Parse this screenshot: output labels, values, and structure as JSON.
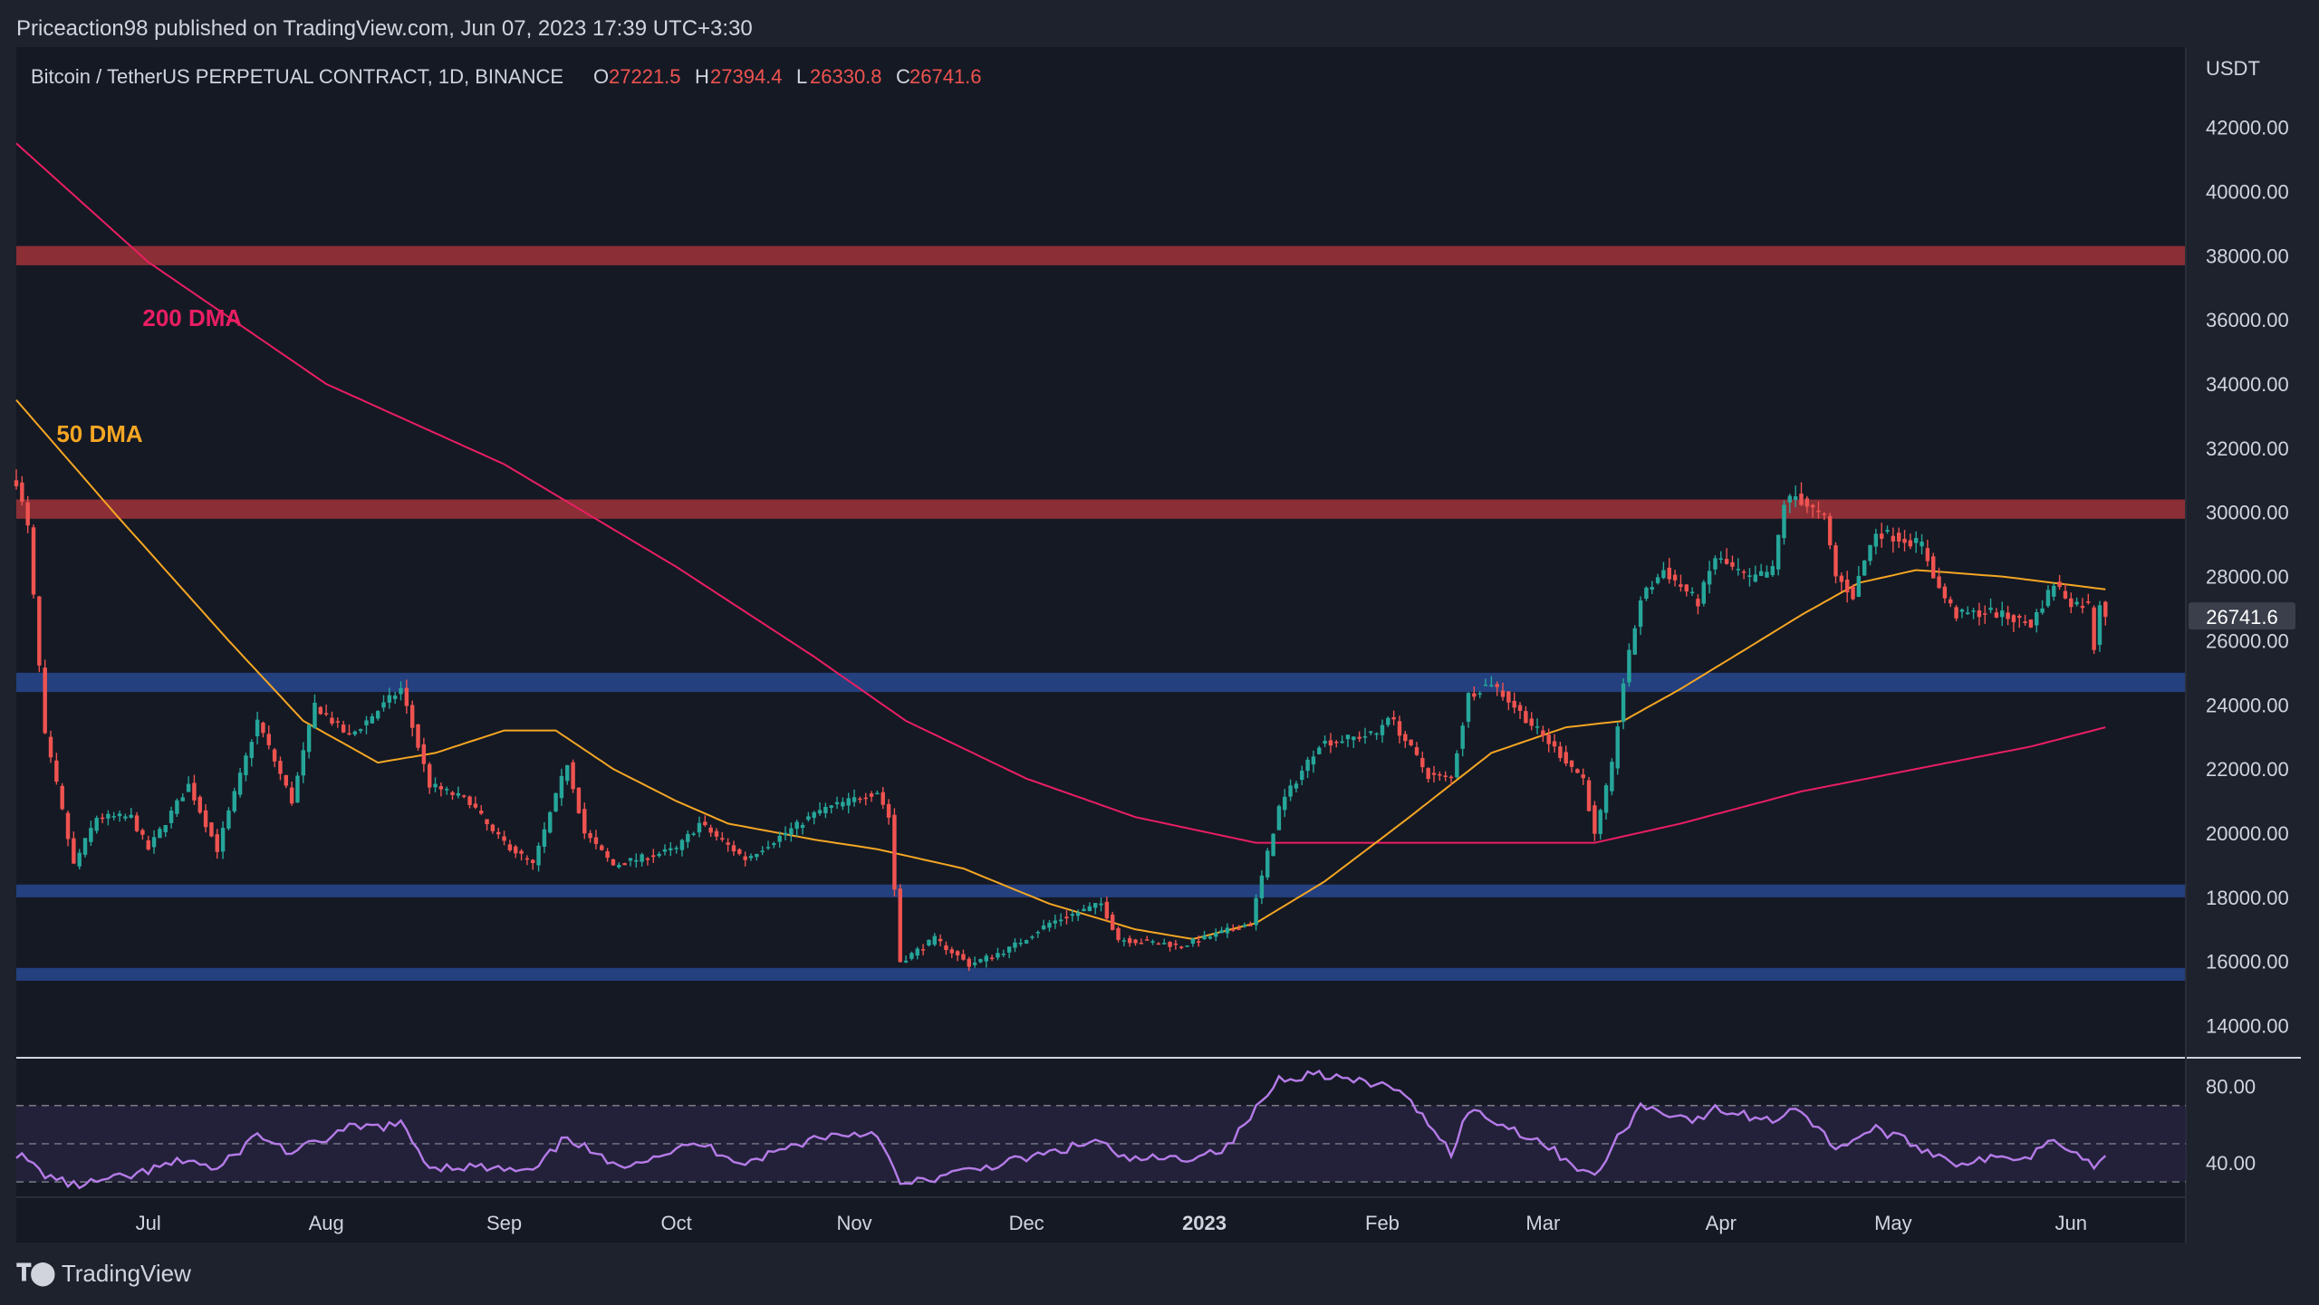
{
  "publisher_line": "Priceaction98 published on TradingView.com, Jun 07, 2023 17:39 UTC+3:30",
  "brand": {
    "name": "TradingView",
    "logo_icon": "tradingview-logo-icon"
  },
  "colors": {
    "background": "#1e222d",
    "chart_background": "#151924",
    "candle_up": "#26a69a",
    "candle_down": "#ef5350",
    "ma50": "#f5a623",
    "ma200": "#e91e63",
    "resistance_zone": "#8b2e35",
    "support_zone": "#24407f",
    "rsi_line": "#b57be8",
    "rsi_band_fill": "#2a2545"
  },
  "chart_data": {
    "type": "candlestick",
    "symbol_line": "Bitcoin / TetherUS PERPETUAL CONTRACT, 1D, BINANCE",
    "ohlc_readout": [
      {
        "label": "O",
        "value": "27221.5"
      },
      {
        "label": "H",
        "value": "27394.4"
      },
      {
        "label": "L",
        "value": "26330.8"
      },
      {
        "label": "C",
        "value": "26741.6"
      }
    ],
    "currency_label": "USDT",
    "last_price": 26741.6,
    "last_price_label": "26741.6",
    "x_range": [
      "2022-06-08",
      "2023-06-21"
    ],
    "y_range": [
      13000,
      44500
    ],
    "y_ticks": [
      "14000.00",
      "16000.00",
      "18000.00",
      "20000.00",
      "22000.00",
      "24000.00",
      "26000.00",
      "28000.00",
      "30000.00",
      "32000.00",
      "34000.00",
      "36000.00",
      "38000.00",
      "40000.00",
      "42000.00"
    ],
    "x_ticks": [
      {
        "label": "Jul",
        "date": "2022-07-01",
        "bold": false
      },
      {
        "label": "Aug",
        "date": "2022-08-01",
        "bold": false
      },
      {
        "label": "Sep",
        "date": "2022-09-01",
        "bold": false
      },
      {
        "label": "Oct",
        "date": "2022-10-01",
        "bold": false
      },
      {
        "label": "Nov",
        "date": "2022-11-01",
        "bold": false
      },
      {
        "label": "Dec",
        "date": "2022-12-01",
        "bold": false
      },
      {
        "label": "2023",
        "date": "2023-01-01",
        "bold": true
      },
      {
        "label": "Feb",
        "date": "2023-02-01",
        "bold": false
      },
      {
        "label": "Mar",
        "date": "2023-03-01",
        "bold": false
      },
      {
        "label": "Apr",
        "date": "2023-04-01",
        "bold": false
      },
      {
        "label": "May",
        "date": "2023-05-01",
        "bold": false
      },
      {
        "label": "Jun",
        "date": "2023-06-01",
        "bold": false
      }
    ],
    "zones": [
      {
        "kind": "resistance",
        "low": 37700,
        "high": 38300
      },
      {
        "kind": "resistance",
        "low": 29800,
        "high": 30400
      },
      {
        "kind": "support",
        "low": 24400,
        "high": 25000
      },
      {
        "kind": "support",
        "low": 18000,
        "high": 18400
      },
      {
        "kind": "support",
        "low": 15400,
        "high": 15800
      }
    ],
    "price_keypoints": [
      [
        "2022-06-08",
        31000
      ],
      [
        "2022-06-10",
        29500
      ],
      [
        "2022-06-13",
        23000
      ],
      [
        "2022-06-15",
        21500
      ],
      [
        "2022-06-18",
        19000
      ],
      [
        "2022-06-22",
        20500
      ],
      [
        "2022-06-28",
        20500
      ],
      [
        "2022-07-01",
        19500
      ],
      [
        "2022-07-08",
        21500
      ],
      [
        "2022-07-13",
        19500
      ],
      [
        "2022-07-20",
        23500
      ],
      [
        "2022-07-26",
        21000
      ],
      [
        "2022-07-30",
        24000
      ],
      [
        "2022-08-05",
        23000
      ],
      [
        "2022-08-14",
        24500
      ],
      [
        "2022-08-19",
        21500
      ],
      [
        "2022-08-26",
        21000
      ],
      [
        "2022-08-30",
        20000
      ],
      [
        "2022-09-06",
        19000
      ],
      [
        "2022-09-12",
        22200
      ],
      [
        "2022-09-15",
        20000
      ],
      [
        "2022-09-20",
        19000
      ],
      [
        "2022-10-01",
        19500
      ],
      [
        "2022-10-05",
        20300
      ],
      [
        "2022-10-13",
        19200
      ],
      [
        "2022-10-26",
        20700
      ],
      [
        "2022-11-05",
        21300
      ],
      [
        "2022-11-07",
        20500
      ],
      [
        "2022-11-09",
        16000
      ],
      [
        "2022-11-15",
        16700
      ],
      [
        "2022-11-21",
        15900
      ],
      [
        "2022-11-28",
        16400
      ],
      [
        "2022-12-05",
        17200
      ],
      [
        "2022-12-14",
        17800
      ],
      [
        "2022-12-17",
        16700
      ],
      [
        "2022-12-28",
        16500
      ],
      [
        "2023-01-04",
        16900
      ],
      [
        "2023-01-09",
        17200
      ],
      [
        "2023-01-14",
        20800
      ],
      [
        "2023-01-21",
        22800
      ],
      [
        "2023-01-31",
        23100
      ],
      [
        "2023-02-02",
        23700
      ],
      [
        "2023-02-09",
        21800
      ],
      [
        "2023-02-13",
        21700
      ],
      [
        "2023-02-16",
        24300
      ],
      [
        "2023-02-20",
        24700
      ],
      [
        "2023-02-28",
        23200
      ],
      [
        "2023-03-08",
        21700
      ],
      [
        "2023-03-10",
        19900
      ],
      [
        "2023-03-13",
        22100
      ],
      [
        "2023-03-15",
        24700
      ],
      [
        "2023-03-18",
        27300
      ],
      [
        "2023-03-22",
        28200
      ],
      [
        "2023-03-28",
        27200
      ],
      [
        "2023-03-31",
        28600
      ],
      [
        "2023-04-06",
        27900
      ],
      [
        "2023-04-10",
        28200
      ],
      [
        "2023-04-12",
        30300
      ],
      [
        "2023-04-14",
        30500
      ],
      [
        "2023-04-19",
        29800
      ],
      [
        "2023-04-21",
        28000
      ],
      [
        "2023-04-24",
        27400
      ],
      [
        "2023-04-26",
        28500
      ],
      [
        "2023-04-28",
        29400
      ],
      [
        "2023-05-06",
        29000
      ],
      [
        "2023-05-09",
        27600
      ],
      [
        "2023-05-12",
        26800
      ],
      [
        "2023-05-18",
        26900
      ],
      [
        "2023-05-25",
        26500
      ],
      [
        "2023-05-29",
        27800
      ],
      [
        "2023-06-01",
        27200
      ],
      [
        "2023-06-04",
        27100
      ],
      [
        "2023-06-05",
        25800
      ],
      [
        "2023-06-06",
        27200
      ],
      [
        "2023-06-07",
        26741.6
      ]
    ],
    "ma50_keypoints": [
      [
        "2022-06-08",
        33500
      ],
      [
        "2022-06-25",
        30000
      ],
      [
        "2022-07-15",
        26000
      ],
      [
        "2022-07-28",
        23500
      ],
      [
        "2022-08-10",
        22200
      ],
      [
        "2022-08-20",
        22500
      ],
      [
        "2022-09-01",
        23200
      ],
      [
        "2022-09-10",
        23200
      ],
      [
        "2022-09-20",
        22000
      ],
      [
        "2022-10-01",
        21000
      ],
      [
        "2022-10-10",
        20300
      ],
      [
        "2022-10-25",
        19800
      ],
      [
        "2022-11-05",
        19500
      ],
      [
        "2022-11-20",
        18900
      ],
      [
        "2022-12-05",
        17800
      ],
      [
        "2022-12-20",
        17000
      ],
      [
        "2022-12-30",
        16700
      ],
      [
        "2023-01-10",
        17200
      ],
      [
        "2023-01-22",
        18500
      ],
      [
        "2023-02-05",
        20400
      ],
      [
        "2023-02-20",
        22500
      ],
      [
        "2023-03-05",
        23300
      ],
      [
        "2023-03-15",
        23500
      ],
      [
        "2023-03-25",
        24500
      ],
      [
        "2023-04-05",
        25700
      ],
      [
        "2023-04-15",
        26800
      ],
      [
        "2023-04-25",
        27800
      ],
      [
        "2023-05-05",
        28200
      ],
      [
        "2023-05-20",
        28000
      ],
      [
        "2023-06-07",
        27600
      ]
    ],
    "ma200_keypoints": [
      [
        "2022-06-08",
        41500
      ],
      [
        "2022-07-01",
        37800
      ],
      [
        "2022-08-01",
        34000
      ],
      [
        "2022-09-01",
        31500
      ],
      [
        "2022-10-01",
        28300
      ],
      [
        "2022-10-25",
        25500
      ],
      [
        "2022-11-10",
        23500
      ],
      [
        "2022-12-01",
        21700
      ],
      [
        "2022-12-20",
        20500
      ],
      [
        "2023-01-10",
        19700
      ],
      [
        "2023-02-01",
        19700
      ],
      [
        "2023-02-20",
        19700
      ],
      [
        "2023-03-10",
        19700
      ],
      [
        "2023-03-25",
        20300
      ],
      [
        "2023-04-15",
        21300
      ],
      [
        "2023-05-05",
        22000
      ],
      [
        "2023-05-25",
        22700
      ],
      [
        "2023-06-07",
        23300
      ]
    ],
    "annotations": [
      {
        "text": "200 DMA",
        "date": "2022-06-30",
        "price": 35800,
        "color": "#e91e63"
      },
      {
        "text": "50 DMA",
        "date": "2022-06-15",
        "price": 32200,
        "color": "#f5a623"
      }
    ],
    "rsi": {
      "y_range": [
        22,
        95
      ],
      "y_ticks": [
        "80.00",
        "40.00"
      ],
      "band": [
        30,
        70
      ],
      "mid": 50,
      "keypoints": [
        [
          "2022-06-08",
          45
        ],
        [
          "2022-06-13",
          34
        ],
        [
          "2022-06-18",
          28
        ],
        [
          "2022-06-28",
          33
        ],
        [
          "2022-07-08",
          42
        ],
        [
          "2022-07-13",
          36
        ],
        [
          "2022-07-20",
          55
        ],
        [
          "2022-07-26",
          45
        ],
        [
          "2022-08-05",
          58
        ],
        [
          "2022-08-14",
          60
        ],
        [
          "2022-08-19",
          38
        ],
        [
          "2022-08-26",
          38
        ],
        [
          "2022-09-06",
          35
        ],
        [
          "2022-09-12",
          54
        ],
        [
          "2022-09-20",
          38
        ],
        [
          "2022-10-05",
          50
        ],
        [
          "2022-10-13",
          40
        ],
        [
          "2022-10-26",
          54
        ],
        [
          "2022-11-05",
          56
        ],
        [
          "2022-11-09",
          28
        ],
        [
          "2022-11-21",
          36
        ],
        [
          "2022-12-05",
          45
        ],
        [
          "2022-12-14",
          52
        ],
        [
          "2022-12-17",
          42
        ],
        [
          "2022-12-28",
          42
        ],
        [
          "2023-01-05",
          48
        ],
        [
          "2023-01-14",
          84
        ],
        [
          "2023-01-21",
          87
        ],
        [
          "2023-01-31",
          80
        ],
        [
          "2023-02-02",
          82
        ],
        [
          "2023-02-09",
          62
        ],
        [
          "2023-02-13",
          45
        ],
        [
          "2023-02-16",
          68
        ],
        [
          "2023-02-28",
          52
        ],
        [
          "2023-03-10",
          32
        ],
        [
          "2023-03-13",
          48
        ],
        [
          "2023-03-18",
          70
        ],
        [
          "2023-03-28",
          62
        ],
        [
          "2023-03-31",
          68
        ],
        [
          "2023-04-10",
          62
        ],
        [
          "2023-04-14",
          70
        ],
        [
          "2023-04-21",
          48
        ],
        [
          "2023-04-28",
          58
        ],
        [
          "2023-05-12",
          40
        ],
        [
          "2023-05-25",
          44
        ],
        [
          "2023-05-29",
          54
        ],
        [
          "2023-06-05",
          38
        ],
        [
          "2023-06-07",
          46
        ]
      ]
    }
  }
}
